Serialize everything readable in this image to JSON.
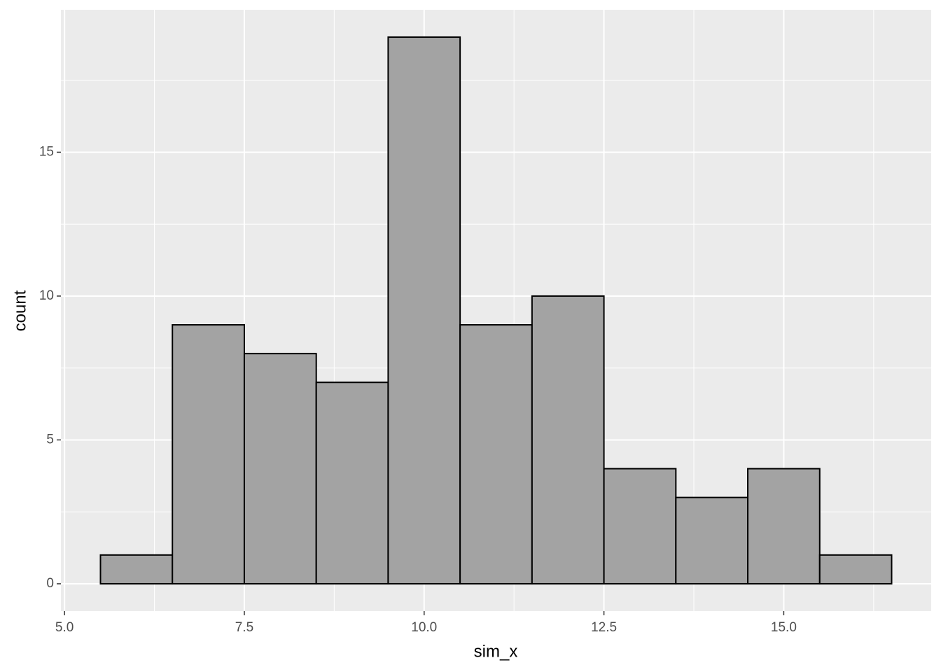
{
  "chart_data": {
    "type": "histogram",
    "x_label": "sim_x",
    "y_label": "count",
    "bins": [
      5.5,
      6.5,
      7.5,
      8.5,
      9.5,
      10.5,
      11.5,
      12.5,
      13.5,
      14.5,
      15.5,
      16.5
    ],
    "values": [
      1,
      9,
      8,
      7,
      19,
      9,
      10,
      4,
      3,
      4,
      1
    ],
    "color": "#a3a3a3",
    "edge_color": "#000000",
    "background": "#ebebeb",
    "xlim": [
      4.95,
      17.05
    ],
    "xticks": [
      {
        "value": 5,
        "label": "5.0"
      },
      7.5,
      {
        "value": 10,
        "label": "10.0"
      },
      12.5,
      {
        "value": 15,
        "label": "15.0"
      }
    ],
    "ylim": [
      -0.95,
      19.95
    ],
    "yticks": [
      0,
      5,
      10,
      15
    ],
    "grid": true
  }
}
